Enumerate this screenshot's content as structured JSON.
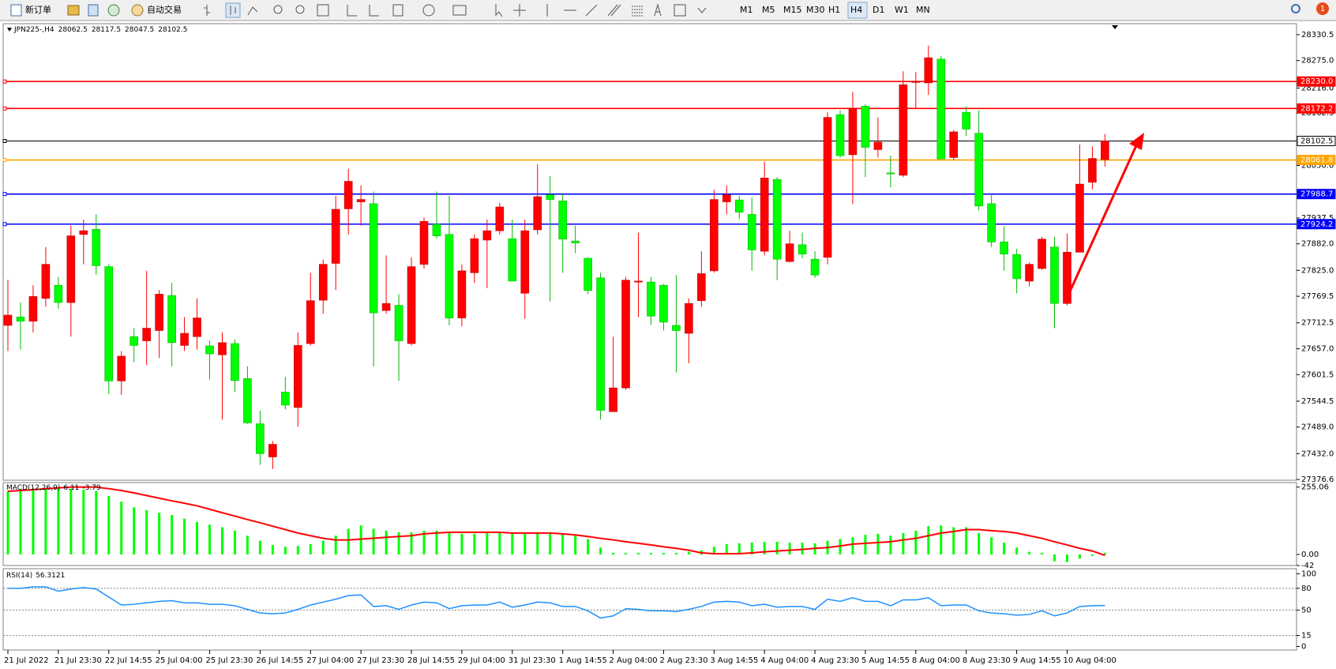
{
  "toolbar": {
    "new_order": "新订单",
    "auto_trading": "自动交易",
    "timeframes": [
      "M1",
      "M5",
      "M15",
      "M30",
      "H1",
      "H4",
      "D1",
      "W1",
      "MN"
    ],
    "notification_count": 1
  },
  "chart_data": {
    "type": "candlestick",
    "symbol": "JPN225-,H4",
    "up_color": "#ff0000",
    "down_color": "#00ff00",
    "grid": false,
    "x": [
      "21 Jul 2022",
      null,
      null,
      null,
      "21 Jul 23:30",
      null,
      null,
      null,
      "22 Jul 14:55",
      null,
      null,
      null,
      "25 Jul 04:00",
      null,
      null,
      null,
      "25 Jul 23:30",
      null,
      null,
      null,
      "26 Jul 14:55",
      null,
      null,
      null,
      "27 Jul 04:00",
      null,
      null,
      null,
      "27 Jul 23:30",
      null,
      null,
      null,
      "28 Jul 14:55",
      null,
      null,
      null,
      "29 Jul 04:00",
      null,
      null,
      null,
      "31 Jul 23:30",
      null,
      null,
      null,
      "1 Aug 14:55",
      null,
      null,
      null,
      "2 Aug 04:00",
      null,
      null,
      null,
      "2 Aug 23:30",
      null,
      null,
      null,
      "3 Aug 14:55",
      null,
      null,
      null,
      "4 Aug 04:00",
      null,
      null,
      null,
      "4 Aug 23:30",
      null,
      null,
      null,
      "5 Aug 14:55",
      null,
      null,
      null,
      "8 Aug 04:00",
      null,
      null,
      null,
      "8 Aug 23:30",
      null,
      null,
      null,
      "9 Aug 14:55",
      null,
      null,
      null,
      "10 Aug 04:00",
      null,
      null,
      null
    ],
    "open": [
      27707,
      27725,
      27716,
      27765,
      27793,
      27756,
      27902,
      27913,
      27833,
      27588,
      27683,
      27674,
      27696,
      27771,
      27664,
      27683,
      27663,
      27644,
      27668,
      27593,
      27496,
      27425,
      27564,
      27531,
      27668,
      27761,
      27840,
      27957,
      27972,
      27968,
      27739,
      27750,
      27668,
      27838,
      27924,
      27902,
      27723,
      27820,
      27890,
      27910,
      27893,
      27776,
      27912,
      27987,
      27974,
      27888,
      27851,
      27809,
      27522,
      27573,
      27800,
      27800,
      27793,
      27707,
      27690,
      27760,
      27824,
      27972,
      27976,
      27945,
      27866,
      28020,
      27844,
      27880,
      27849,
      27853,
      28159,
      28073,
      28177,
      28084,
      28034,
      28029,
      28228,
      28227,
      28278,
      28067,
      28164,
      28119,
      27968,
      27886,
      27859,
      27802,
      27829,
      27875,
      27754,
      27864,
      28014,
      28062.5
    ],
    "high": [
      27805,
      27756,
      27793,
      27875,
      27811,
      27921,
      27934,
      27945,
      27838,
      27652,
      27701,
      27824,
      27783,
      27798,
      27725,
      27765,
      27674,
      27692,
      27677,
      27619,
      27524,
      27459,
      27597,
      27692,
      27820,
      27848,
      27985,
      28043,
      28007,
      27994,
      27857,
      27774,
      27853,
      27939,
      27994,
      27985,
      27838,
      27902,
      27934,
      27970,
      27934,
      27934,
      28053,
      28027,
      27989,
      27921,
      27853,
      27820,
      27683,
      27811,
      27906,
      27811,
      27796,
      27815,
      27765,
      27866,
      27998,
      28007,
      27985,
      27981,
      28058,
      28025,
      27910,
      27906,
      27866,
      28164,
      28168,
      28208,
      28181,
      28153,
      28071,
      28252,
      28250,
      28307,
      28285,
      28126,
      28177,
      28168,
      27989,
      27919,
      27871,
      27842,
      27897,
      27897,
      27904,
      28095,
      28091,
      28117.5
    ],
    "low": [
      27652,
      27655,
      27692,
      27747,
      27743,
      27683,
      27838,
      27816,
      27560,
      27558,
      27628,
      27622,
      27637,
      27619,
      27652,
      27655,
      27591,
      27505,
      27564,
      27496,
      27408,
      27399,
      27527,
      27490,
      27664,
      27732,
      27783,
      27902,
      27921,
      27619,
      27732,
      27588,
      27664,
      27829,
      27893,
      27707,
      27705,
      27798,
      27787,
      27902,
      27802,
      27721,
      27902,
      27758,
      27820,
      27862,
      27774,
      27505,
      27522,
      27569,
      27725,
      27708,
      27696,
      27606,
      27626,
      27747,
      27820,
      27945,
      27935,
      27824,
      27857,
      27804,
      27842,
      27851,
      27809,
      27838,
      28067,
      27967,
      28025,
      28067,
      28003,
      28025,
      28172,
      28201,
      28064,
      28062,
      28113,
      27954,
      27875,
      27824,
      27776,
      27791,
      27826,
      27701,
      27750,
      27864,
      27999,
      28047.5
    ],
    "close": [
      27729,
      27716,
      27769,
      27838,
      27756,
      27899,
      27910,
      27835,
      27588,
      27641,
      27664,
      27701,
      27774,
      27670,
      27690,
      27723,
      27646,
      27670,
      27589,
      27498,
      27432,
      27452,
      27536,
      27664,
      27760,
      27838,
      27956,
      28016,
      27977,
      27734,
      27754,
      27674,
      27833,
      27930,
      27899,
      27723,
      27824,
      27893,
      27910,
      27961,
      27802,
      27910,
      27983,
      27977,
      27892,
      27884,
      27782,
      27525,
      27573,
      27804,
      27802,
      27727,
      27714,
      27696,
      27754,
      27818,
      27977,
      27987,
      27950,
      27869,
      28023,
      27849,
      27882,
      27860,
      27815,
      28153,
      28071,
      28172,
      28089,
      28100,
      28032,
      28223,
      28230,
      28281,
      28064,
      28122,
      28128,
      27963,
      27886,
      27860,
      27807,
      27838,
      27892,
      27754,
      27864,
      28010,
      28065,
      28102.5
    ],
    "ylim": [
      27375,
      28354
    ],
    "yticks": [
      28330.5,
      {
        "value": 28275,
        "label": "28275.0"
      },
      {
        "value": 28216,
        "label": "28216.0"
      },
      28162.5,
      {
        "value": 28050,
        "label": "28050.0"
      },
      27937.5,
      {
        "value": 27882,
        "label": "27882.0"
      },
      {
        "value": 27825,
        "label": "27825.0"
      },
      27769.5,
      27712.5,
      {
        "value": 27657,
        "label": "27657.0"
      },
      27601.5,
      27544.5,
      {
        "value": 27489,
        "label": "27489.0"
      },
      {
        "value": 27432,
        "label": "27432.0"
      },
      27376.6
    ],
    "hlines": [
      {
        "value": 28230,
        "label": "28230.0",
        "color": "#ff0000"
      },
      {
        "value": 28172.2,
        "color": "#ff0000"
      },
      {
        "value": 28102.5,
        "color": "#000000"
      },
      {
        "value": 28061.8,
        "color": "#ffa500"
      },
      {
        "value": 27988.7,
        "color": "#0000ff"
      },
      {
        "value": 27924.2,
        "color": "#0000ff"
      }
    ],
    "macd": {
      "label": "MACD(12,26,9)",
      "histogram_color": "#00ff00",
      "signal_color": "#ff0000",
      "histogram": [
        240,
        245,
        250,
        250,
        250,
        248,
        245,
        240,
        222,
        200,
        178,
        168,
        158,
        149,
        136,
        123,
        113,
        103,
        90,
        71,
        52,
        36,
        29,
        32,
        39,
        52,
        71,
        97,
        110,
        97,
        90,
        84,
        84,
        90,
        90,
        84,
        78,
        78,
        81,
        84,
        78,
        81,
        84,
        84,
        78,
        71,
        58,
        26,
        6,
        6,
        6,
        6,
        6,
        6,
        10,
        16,
        29,
        39,
        42,
        45,
        48,
        48,
        45,
        45,
        42,
        52,
        58,
        65,
        74,
        78,
        71,
        81,
        90,
        107,
        110,
        103,
        103,
        81,
        65,
        45,
        26,
        10,
        6,
        -26,
        -29,
        -16,
        -6,
        6.11
      ],
      "signal": [
        239,
        242,
        245,
        249,
        252,
        255,
        255,
        255,
        249,
        242,
        233,
        223,
        213,
        203,
        194,
        184,
        171,
        158,
        145,
        132,
        120,
        107,
        94,
        81,
        71,
        61,
        55,
        55,
        58,
        61,
        65,
        68,
        71,
        78,
        81,
        84,
        84,
        84,
        84,
        84,
        81,
        81,
        81,
        81,
        78,
        74,
        68,
        61,
        55,
        48,
        42,
        36,
        29,
        23,
        16,
        6,
        3,
        3,
        3,
        6,
        10,
        13,
        16,
        19,
        23,
        26,
        32,
        39,
        42,
        45,
        48,
        55,
        61,
        71,
        81,
        87,
        94,
        94,
        90,
        87,
        81,
        71,
        61,
        48,
        36,
        23,
        13,
        -3.79
      ],
      "ylim": [
        -42,
        272
      ],
      "yticks": [
        255.06,
        {
          "value": 0,
          "label": "0.00"
        },
        -42
      ]
    },
    "rsi": {
      "label": "RSI(14)",
      "color": "#1e90ff",
      "values": [
        80,
        80,
        82,
        82,
        76,
        79,
        81,
        79,
        68,
        57,
        58,
        60,
        62,
        63,
        60,
        60,
        58,
        58,
        56,
        51,
        46,
        45,
        46,
        51,
        57,
        61,
        65,
        70,
        71,
        55,
        56,
        51,
        57,
        61,
        60,
        52,
        56,
        57,
        57,
        61,
        54,
        57,
        61,
        60,
        55,
        55,
        49,
        39,
        42,
        52,
        51,
        49,
        49,
        48,
        51,
        55,
        61,
        62,
        61,
        56,
        58,
        54,
        55,
        55,
        51,
        65,
        62,
        67,
        62,
        62,
        56,
        64,
        64,
        67,
        56,
        57,
        57,
        49,
        46,
        45,
        43,
        44,
        49,
        42,
        46,
        55,
        56,
        56.3121
      ],
      "ylim": [
        -5,
        107
      ],
      "yticks": [
        100,
        80,
        50,
        15,
        0
      ],
      "levels": [
        80,
        50,
        15
      ]
    }
  }
}
